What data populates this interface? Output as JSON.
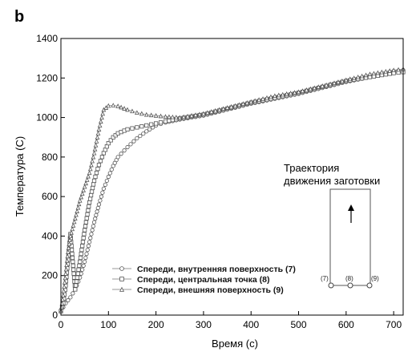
{
  "panel_label": "b",
  "chart_data": {
    "type": "scatter",
    "title": "",
    "xlabel": "Время (с)",
    "ylabel": "Температура (С)",
    "xlim": [
      0,
      720
    ],
    "ylim": [
      0,
      1400
    ],
    "xticks": [
      0,
      100,
      200,
      300,
      400,
      500,
      600,
      700
    ],
    "yticks": [
      0,
      200,
      400,
      600,
      800,
      1000,
      1200,
      1400
    ],
    "legend_position": "bottom-left",
    "series": [
      {
        "name": "Спереди, внутренняя поверхность (7)",
        "marker": "circle",
        "x": [
          0,
          5,
          10,
          15,
          20,
          30,
          40,
          50,
          60,
          70,
          80,
          90,
          100,
          110,
          120,
          140,
          160,
          180,
          200,
          220,
          250,
          300,
          350,
          400,
          450,
          500,
          550,
          600,
          650,
          700,
          720
        ],
        "y": [
          20,
          40,
          60,
          75,
          90,
          130,
          190,
          270,
          370,
          470,
          560,
          640,
          700,
          755,
          800,
          850,
          895,
          930,
          960,
          975,
          990,
          1010,
          1040,
          1070,
          1095,
          1120,
          1150,
          1180,
          1205,
          1235,
          1240
        ]
      },
      {
        "name": "Спереди, центральная точка (8)",
        "marker": "square",
        "x": [
          0,
          5,
          10,
          15,
          20,
          30,
          40,
          50,
          60,
          70,
          80,
          90,
          100,
          110,
          120,
          140,
          160,
          180,
          200,
          220,
          250,
          300,
          350,
          400,
          450,
          500,
          550,
          600,
          650,
          700,
          720
        ],
        "y": [
          20,
          60,
          150,
          280,
          410,
          130,
          270,
          430,
          570,
          680,
          760,
          820,
          870,
          900,
          920,
          940,
          950,
          960,
          970,
          980,
          995,
          1015,
          1045,
          1075,
          1100,
          1125,
          1155,
          1185,
          1205,
          1225,
          1230
        ]
      },
      {
        "name": "Спереди, внешняя поверхность (9)",
        "marker": "triangle",
        "x": [
          0,
          5,
          10,
          15,
          20,
          30,
          40,
          50,
          60,
          70,
          80,
          90,
          100,
          110,
          120,
          140,
          160,
          180,
          200,
          220,
          250,
          300,
          350,
          400,
          450,
          500,
          550,
          600,
          650,
          700,
          720
        ],
        "y": [
          20,
          100,
          210,
          320,
          400,
          490,
          580,
          650,
          720,
          820,
          940,
          1040,
          1060,
          1062,
          1058,
          1040,
          1025,
          1015,
          1010,
          1005,
          1000,
          1020,
          1050,
          1080,
          1110,
          1130,
          1160,
          1190,
          1220,
          1240,
          1245
        ]
      }
    ]
  },
  "inset": {
    "title_line1": "Траектория",
    "title_line2": "движения заготовки",
    "points": [
      "(7)",
      "(8)",
      "(9)"
    ]
  }
}
